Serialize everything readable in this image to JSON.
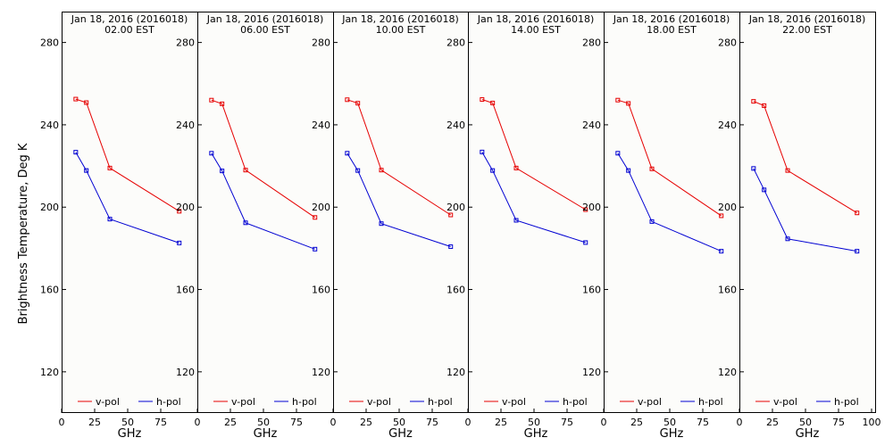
{
  "chart_data": {
    "type": "line",
    "ylabel": "Brightness Temperature, Deg K",
    "xlabel": "GHz",
    "ylim": [
      100,
      295
    ],
    "xlim": [
      0,
      100
    ],
    "yticks": [
      120,
      160,
      200,
      240,
      280
    ],
    "xticks": [
      0,
      25,
      50,
      75
    ],
    "xticks_last_panel": [
      0,
      25,
      50,
      75,
      100
    ],
    "x": [
      10.7,
      18.7,
      36.5,
      89.0
    ],
    "legend": {
      "entries": [
        "v-pol",
        "h-pol"
      ],
      "placement": "bottom"
    },
    "colors": {
      "v-pol": "#e60000",
      "h-pol": "#0000d2",
      "background": "#fcfcfa"
    },
    "panels": [
      {
        "title_line1": "Jan 18, 2016 (2016018)",
        "title_line2": "02.00 EST",
        "series": [
          {
            "name": "v-pol",
            "values": [
              252.5,
              250.8,
              219.0,
              198.0
            ]
          },
          {
            "name": "h-pol",
            "values": [
              226.7,
              217.8,
              194.2,
              182.6
            ]
          }
        ]
      },
      {
        "title_line1": "Jan 18, 2016 (2016018)",
        "title_line2": "06.00 EST",
        "series": [
          {
            "name": "v-pol",
            "values": [
              252.0,
              250.2,
              218.0,
              195.0
            ]
          },
          {
            "name": "h-pol",
            "values": [
              226.2,
              217.6,
              192.4,
              179.6
            ]
          }
        ]
      },
      {
        "title_line1": "Jan 18, 2016 (2016018)",
        "title_line2": "10.00 EST",
        "series": [
          {
            "name": "v-pol",
            "values": [
              252.2,
              250.5,
              218.0,
              196.2
            ]
          },
          {
            "name": "h-pol",
            "values": [
              226.2,
              217.8,
              192.0,
              180.8
            ]
          }
        ]
      },
      {
        "title_line1": "Jan 18, 2016 (2016018)",
        "title_line2": "14.00 EST",
        "series": [
          {
            "name": "v-pol",
            "values": [
              252.3,
              250.6,
              219.0,
              198.8
            ]
          },
          {
            "name": "h-pol",
            "values": [
              226.8,
              217.8,
              193.6,
              182.8
            ]
          }
        ]
      },
      {
        "title_line1": "Jan 18, 2016 (2016018)",
        "title_line2": "18.00 EST",
        "series": [
          {
            "name": "v-pol",
            "values": [
              252.0,
              250.4,
              218.6,
              195.8
            ]
          },
          {
            "name": "h-pol",
            "values": [
              226.2,
              217.8,
              193.0,
              178.6
            ]
          }
        ]
      },
      {
        "title_line1": "Jan 18, 2016 (2016018)",
        "title_line2": "22.00 EST",
        "series": [
          {
            "name": "v-pol",
            "values": [
              251.4,
              249.3,
              217.8,
              197.2
            ]
          },
          {
            "name": "h-pol",
            "values": [
              218.8,
              208.4,
              184.6,
              178.6
            ]
          }
        ]
      }
    ]
  }
}
